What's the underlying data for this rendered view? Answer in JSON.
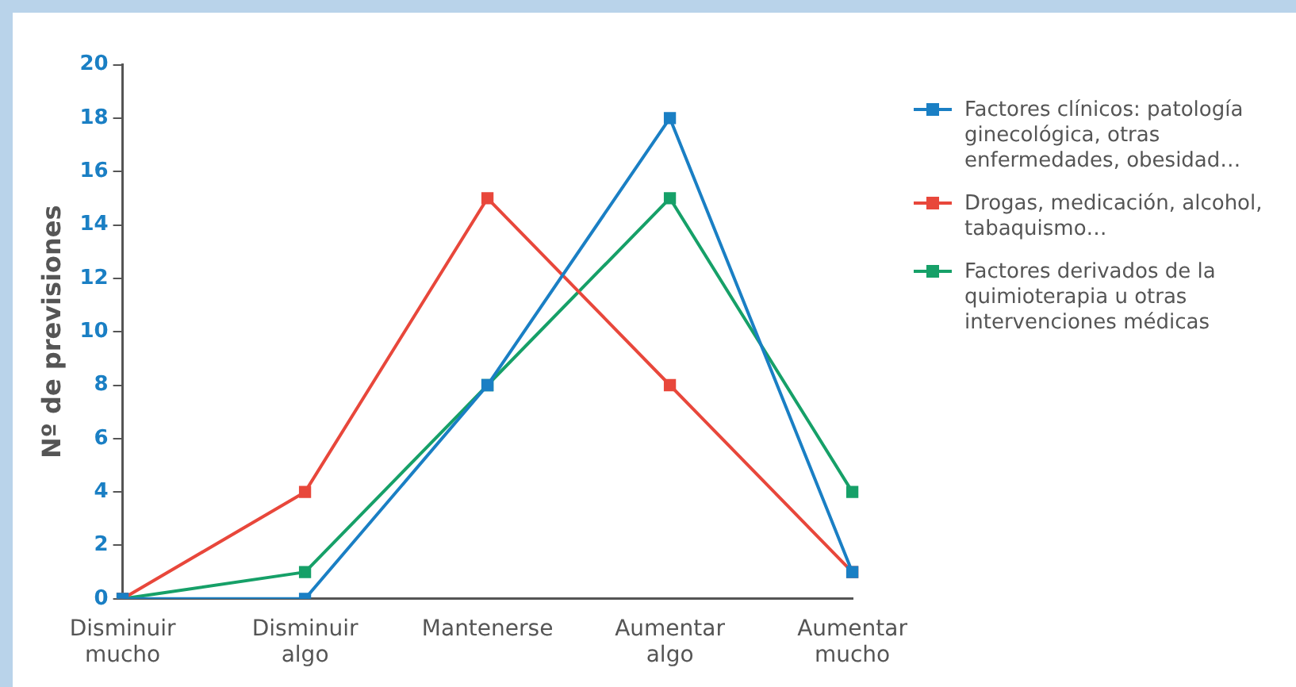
{
  "chart_data": {
    "type": "line",
    "ylabel": "Nº de previsiones",
    "categories": [
      "Disminuir mucho",
      "Disminuir algo",
      "Mantenerse",
      "Aumentar algo",
      "Aumentar mucho"
    ],
    "series": [
      {
        "name": "Factores clínicos: patología ginecológica, otras enfermedades, obesidad…",
        "color": "#1a7fc4",
        "values": [
          0,
          0,
          8,
          18,
          1
        ]
      },
      {
        "name": "Drogas, medicación, alcohol, tabaquismo…",
        "color": "#e8473b",
        "values": [
          0,
          4,
          15,
          8,
          1
        ]
      },
      {
        "name": "Factores derivados de la quimioterapia u otras intervenciones médicas",
        "color": "#16a068",
        "values": [
          0,
          1,
          8,
          15,
          4
        ]
      }
    ],
    "ylim": [
      0,
      20
    ],
    "yticks": [
      0,
      2,
      4,
      6,
      8,
      10,
      12,
      14,
      16,
      18,
      20
    ],
    "grid": false,
    "legend": "right",
    "marker": "square",
    "line_style": "solid"
  }
}
